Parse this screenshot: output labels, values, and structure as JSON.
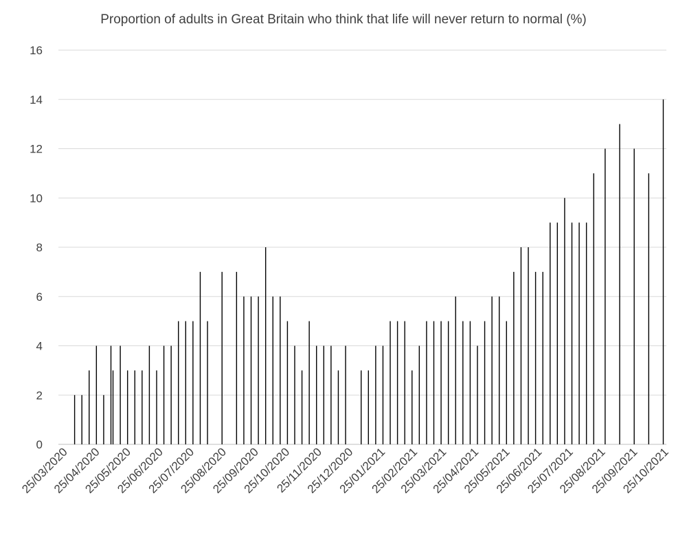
{
  "chart_data": {
    "type": "bar",
    "title": "Proportion of adults in Great Britain who think that life will never return to normal (%)",
    "xlabel": "",
    "ylabel": "",
    "ylim": [
      0,
      16
    ],
    "yticks": [
      0,
      2,
      4,
      6,
      8,
      10,
      12,
      14,
      16
    ],
    "grid": true,
    "x_range": [
      "2020-03-25",
      "2021-10-25"
    ],
    "xticks": [
      "25/03/2020",
      "25/04/2020",
      "25/05/2020",
      "25/06/2020",
      "25/07/2020",
      "25/08/2020",
      "25/09/2020",
      "25/10/2020",
      "25/11/2020",
      "25/12/2020",
      "25/01/2021",
      "25/02/2021",
      "25/03/2021",
      "25/04/2021",
      "25/05/2021",
      "25/06/2021",
      "25/07/2021",
      "25/08/2021",
      "25/09/2021",
      "25/10/2021"
    ],
    "colors": {
      "bar": "#000000",
      "grid": "#d9d9d9",
      "text": "#404040"
    },
    "points": [
      {
        "x": "2020-04-03",
        "y": 2
      },
      {
        "x": "2020-04-10",
        "y": 2
      },
      {
        "x": "2020-04-17",
        "y": 3
      },
      {
        "x": "2020-04-24",
        "y": 4
      },
      {
        "x": "2020-05-01",
        "y": 2
      },
      {
        "x": "2020-05-08",
        "y": 4
      },
      {
        "x": "2020-05-10",
        "y": 3
      },
      {
        "x": "2020-05-17",
        "y": 4
      },
      {
        "x": "2020-05-24",
        "y": 3
      },
      {
        "x": "2020-05-31",
        "y": 3
      },
      {
        "x": "2020-06-07",
        "y": 3
      },
      {
        "x": "2020-06-14",
        "y": 4
      },
      {
        "x": "2020-06-21",
        "y": 3
      },
      {
        "x": "2020-06-28",
        "y": 4
      },
      {
        "x": "2020-07-05",
        "y": 4
      },
      {
        "x": "2020-07-12",
        "y": 5
      },
      {
        "x": "2020-07-19",
        "y": 5
      },
      {
        "x": "2020-07-26",
        "y": 5
      },
      {
        "x": "2020-08-02",
        "y": 7
      },
      {
        "x": "2020-08-09",
        "y": 5
      },
      {
        "x": "2020-08-23",
        "y": 7
      },
      {
        "x": "2020-09-06",
        "y": 7
      },
      {
        "x": "2020-09-13",
        "y": 6
      },
      {
        "x": "2020-09-20",
        "y": 6
      },
      {
        "x": "2020-09-27",
        "y": 6
      },
      {
        "x": "2020-10-04",
        "y": 8
      },
      {
        "x": "2020-10-11",
        "y": 6
      },
      {
        "x": "2020-10-18",
        "y": 6
      },
      {
        "x": "2020-10-25",
        "y": 5
      },
      {
        "x": "2020-11-01",
        "y": 4
      },
      {
        "x": "2020-11-08",
        "y": 3
      },
      {
        "x": "2020-11-15",
        "y": 5
      },
      {
        "x": "2020-11-22",
        "y": 4
      },
      {
        "x": "2020-11-29",
        "y": 4
      },
      {
        "x": "2020-12-06",
        "y": 4
      },
      {
        "x": "2020-12-13",
        "y": 3
      },
      {
        "x": "2020-12-20",
        "y": 4
      },
      {
        "x": "2021-01-04",
        "y": 3
      },
      {
        "x": "2021-01-11",
        "y": 3
      },
      {
        "x": "2021-01-18",
        "y": 4
      },
      {
        "x": "2021-01-25",
        "y": 4
      },
      {
        "x": "2021-02-01",
        "y": 5
      },
      {
        "x": "2021-02-08",
        "y": 5
      },
      {
        "x": "2021-02-15",
        "y": 5
      },
      {
        "x": "2021-02-22",
        "y": 3
      },
      {
        "x": "2021-03-01",
        "y": 4
      },
      {
        "x": "2021-03-08",
        "y": 5
      },
      {
        "x": "2021-03-15",
        "y": 5
      },
      {
        "x": "2021-03-22",
        "y": 5
      },
      {
        "x": "2021-03-29",
        "y": 5
      },
      {
        "x": "2021-04-05",
        "y": 6
      },
      {
        "x": "2021-04-12",
        "y": 5
      },
      {
        "x": "2021-04-19",
        "y": 5
      },
      {
        "x": "2021-04-26",
        "y": 4
      },
      {
        "x": "2021-05-03",
        "y": 5
      },
      {
        "x": "2021-05-10",
        "y": 6
      },
      {
        "x": "2021-05-17",
        "y": 6
      },
      {
        "x": "2021-05-24",
        "y": 5
      },
      {
        "x": "2021-05-31",
        "y": 7
      },
      {
        "x": "2021-06-07",
        "y": 8
      },
      {
        "x": "2021-06-14",
        "y": 8
      },
      {
        "x": "2021-06-21",
        "y": 7
      },
      {
        "x": "2021-06-28",
        "y": 7
      },
      {
        "x": "2021-07-05",
        "y": 9
      },
      {
        "x": "2021-07-12",
        "y": 9
      },
      {
        "x": "2021-07-19",
        "y": 10
      },
      {
        "x": "2021-07-26",
        "y": 9
      },
      {
        "x": "2021-08-02",
        "y": 9
      },
      {
        "x": "2021-08-09",
        "y": 9
      },
      {
        "x": "2021-08-16",
        "y": 11
      },
      {
        "x": "2021-08-27",
        "y": 12
      },
      {
        "x": "2021-09-10",
        "y": 13
      },
      {
        "x": "2021-09-24",
        "y": 12
      },
      {
        "x": "2021-10-08",
        "y": 11
      },
      {
        "x": "2021-10-22",
        "y": 14
      }
    ]
  }
}
